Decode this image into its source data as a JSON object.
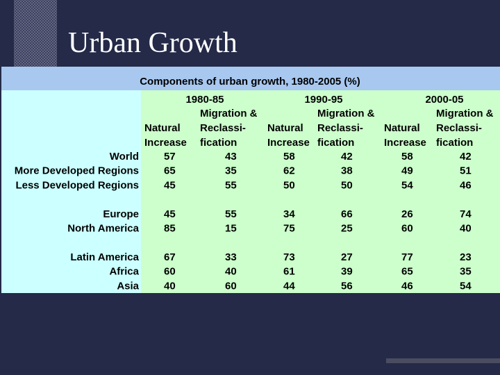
{
  "slide": {
    "title": "Urban Growth"
  },
  "colors": {
    "background": "#242a47",
    "header_band": "#a8c8f0",
    "label_column": "#ccffff",
    "data_area": "#ccffcc",
    "text": "#000000"
  },
  "chart_data": {
    "type": "table",
    "title": "Components of urban growth, 1980-2005 (%)",
    "periods": [
      "1980-85",
      "1990-95",
      "2000-05"
    ],
    "column_headers": {
      "natural": [
        "Natural",
        "Increase"
      ],
      "migration": [
        "Migration &",
        "Reclassi-",
        "fication"
      ]
    },
    "groups": [
      {
        "rows": [
          {
            "region": "World",
            "values": [
              57,
              43,
              58,
              42,
              58,
              42
            ]
          },
          {
            "region": "More Developed Regions",
            "values": [
              65,
              35,
              62,
              38,
              49,
              51
            ]
          },
          {
            "region": "Less Developed Regions",
            "values": [
              45,
              55,
              50,
              50,
              54,
              46
            ]
          }
        ]
      },
      {
        "rows": [
          {
            "region": "Europe",
            "values": [
              45,
              55,
              34,
              66,
              26,
              74
            ]
          },
          {
            "region": "North America",
            "values": [
              85,
              15,
              75,
              25,
              60,
              40
            ]
          }
        ]
      },
      {
        "rows": [
          {
            "region": "Latin America",
            "values": [
              67,
              33,
              73,
              27,
              77,
              23
            ]
          },
          {
            "region": "Africa",
            "values": [
              60,
              40,
              61,
              39,
              65,
              35
            ]
          },
          {
            "region": "Asia",
            "values": [
              40,
              60,
              44,
              56,
              46,
              54
            ]
          }
        ]
      }
    ]
  }
}
